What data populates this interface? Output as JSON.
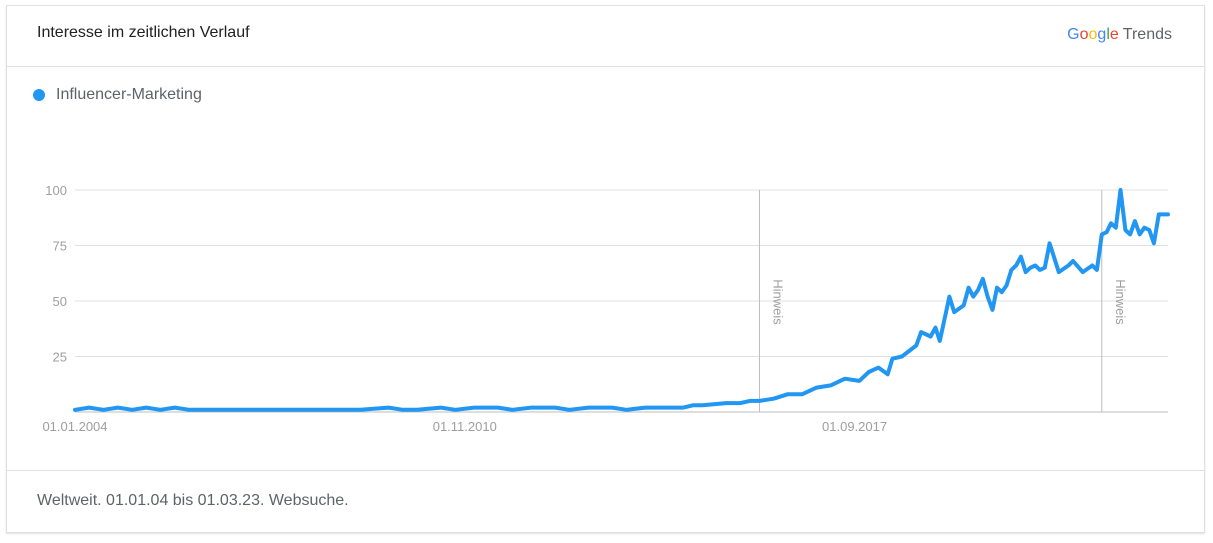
{
  "header": {
    "title": "Interesse im zeitlichen Verlauf",
    "brand": {
      "google_letters": [
        {
          "ch": "G",
          "color": "#4285f4"
        },
        {
          "ch": "o",
          "color": "#ea4335"
        },
        {
          "ch": "o",
          "color": "#fbbc05"
        },
        {
          "ch": "g",
          "color": "#4285f4"
        },
        {
          "ch": "l",
          "color": "#34a853"
        },
        {
          "ch": "e",
          "color": "#ea4335"
        }
      ],
      "trends": "Trends"
    }
  },
  "footer": {
    "text": "Weltweit. 01.01.04 bis 01.03.23. Websuche."
  },
  "chart_data": {
    "type": "line",
    "title": "",
    "xlabel": "",
    "ylabel": "",
    "ylim": [
      0,
      100
    ],
    "yticks": [
      25,
      50,
      75,
      100
    ],
    "grid": true,
    "legend_position": "top-left",
    "xticks": [
      {
        "label": "01.01.2004",
        "date": "2004-01-01"
      },
      {
        "label": "01.11.2010",
        "date": "2010-11-01"
      },
      {
        "label": "01.09.2017",
        "date": "2017-09-01"
      }
    ],
    "annotations": [
      {
        "label": "Hinweis",
        "date": "2016-01-01"
      },
      {
        "label": "Hinweis",
        "date": "2022-01-01"
      }
    ],
    "series": [
      {
        "name": "Influencer-Marketing",
        "color": "#2196f3",
        "points": [
          [
            "2004-01",
            1
          ],
          [
            "2004-04",
            2
          ],
          [
            "2004-07",
            1
          ],
          [
            "2004-10",
            2
          ],
          [
            "2005-01",
            1
          ],
          [
            "2005-04",
            2
          ],
          [
            "2005-07",
            1
          ],
          [
            "2005-10",
            2
          ],
          [
            "2006-01",
            1
          ],
          [
            "2006-04",
            1
          ],
          [
            "2007-01",
            1
          ],
          [
            "2008-01",
            1
          ],
          [
            "2009-01",
            1
          ],
          [
            "2009-07",
            2
          ],
          [
            "2009-10",
            1
          ],
          [
            "2010-01",
            1
          ],
          [
            "2010-06",
            2
          ],
          [
            "2010-09",
            1
          ],
          [
            "2011-01",
            2
          ],
          [
            "2011-06",
            2
          ],
          [
            "2011-09",
            1
          ],
          [
            "2012-01",
            2
          ],
          [
            "2012-06",
            2
          ],
          [
            "2012-09",
            1
          ],
          [
            "2013-01",
            2
          ],
          [
            "2013-06",
            2
          ],
          [
            "2013-09",
            1
          ],
          [
            "2014-01",
            2
          ],
          [
            "2014-06",
            2
          ],
          [
            "2014-09",
            2
          ],
          [
            "2014-11",
            3
          ],
          [
            "2015-01",
            3
          ],
          [
            "2015-06",
            4
          ],
          [
            "2015-09",
            4
          ],
          [
            "2015-11",
            5
          ],
          [
            "2016-01",
            5
          ],
          [
            "2016-04",
            6
          ],
          [
            "2016-07",
            8
          ],
          [
            "2016-10",
            8
          ],
          [
            "2017-01",
            11
          ],
          [
            "2017-04",
            12
          ],
          [
            "2017-07",
            15
          ],
          [
            "2017-10",
            14
          ],
          [
            "2017-12",
            18
          ],
          [
            "2018-02",
            20
          ],
          [
            "2018-04",
            17
          ],
          [
            "2018-05",
            24
          ],
          [
            "2018-07",
            25
          ],
          [
            "2018-10",
            30
          ],
          [
            "2018-11",
            36
          ],
          [
            "2019-01",
            34
          ],
          [
            "2019-02",
            38
          ],
          [
            "2019-03",
            32
          ],
          [
            "2019-05",
            52
          ],
          [
            "2019-06",
            45
          ],
          [
            "2019-08",
            48
          ],
          [
            "2019-09",
            56
          ],
          [
            "2019-10",
            52
          ],
          [
            "2019-11",
            55
          ],
          [
            "2019-12",
            60
          ],
          [
            "2020-01",
            52
          ],
          [
            "2020-02",
            46
          ],
          [
            "2020-03",
            56
          ],
          [
            "2020-04",
            54
          ],
          [
            "2020-05",
            57
          ],
          [
            "2020-06",
            64
          ],
          [
            "2020-07",
            66
          ],
          [
            "2020-08",
            70
          ],
          [
            "2020-09",
            63
          ],
          [
            "2020-10",
            65
          ],
          [
            "2020-11",
            66
          ],
          [
            "2020-12",
            64
          ],
          [
            "2021-01",
            65
          ],
          [
            "2021-02",
            76
          ],
          [
            "2021-04",
            63
          ],
          [
            "2021-06",
            66
          ],
          [
            "2021-07",
            68
          ],
          [
            "2021-09",
            63
          ],
          [
            "2021-11",
            66
          ],
          [
            "2021-12",
            64
          ],
          [
            "2022-01",
            80
          ],
          [
            "2022-02",
            81
          ],
          [
            "2022-03",
            85
          ],
          [
            "2022-04",
            83
          ],
          [
            "2022-05",
            100
          ],
          [
            "2022-06",
            82
          ],
          [
            "2022-07",
            80
          ],
          [
            "2022-08",
            86
          ],
          [
            "2022-09",
            80
          ],
          [
            "2022-10",
            83
          ],
          [
            "2022-11",
            82
          ],
          [
            "2022-12",
            76
          ],
          [
            "2023-01",
            89
          ],
          [
            "2023-03",
            89
          ]
        ]
      }
    ]
  }
}
